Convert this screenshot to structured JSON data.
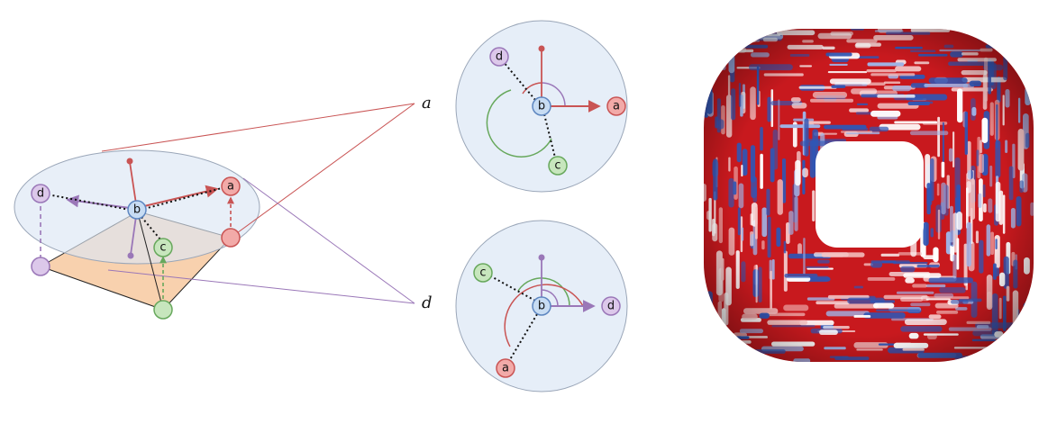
{
  "colors": {
    "red": "#c95454",
    "red_fill": "#f2aaa8",
    "purple": "#9a77b8",
    "purple_fill": "#dcc8ea",
    "green": "#67a85c",
    "green_fill": "#c7e6bd",
    "blue": "#5d86c0",
    "blue_fill": "#c7dcf3",
    "disk_fill": "#e6eef8",
    "disk_stroke": "#9aa6b8",
    "plane_fill": "#f7c9a0",
    "torus_red": "#c8191e",
    "torus_blue": "#2f56b5"
  },
  "nodes": {
    "a": "a",
    "b": "b",
    "c": "c",
    "d": "d"
  },
  "callouts": {
    "a_label": "a",
    "d_label": "d"
  },
  "icons": {
    "torus": "textured-torus-render"
  }
}
